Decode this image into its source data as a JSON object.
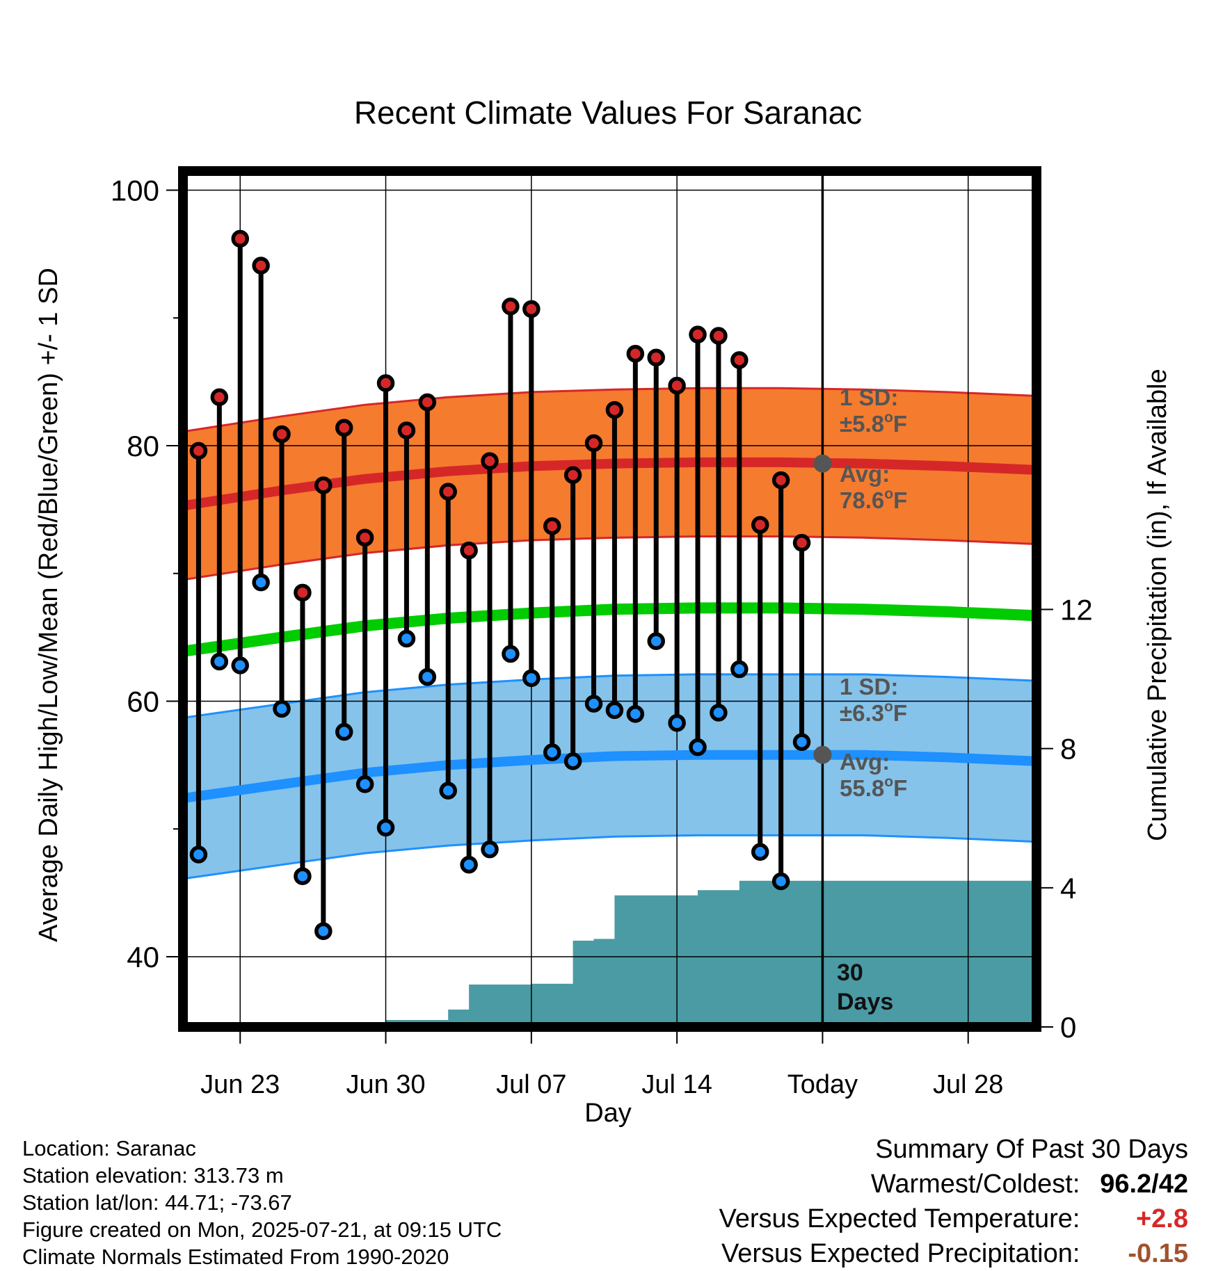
{
  "chart_data": {
    "type": "line",
    "title": "Recent Climate Values For Saranac",
    "xlabel": "Day",
    "ylabel": "Average Daily High/Low/Mean (Red/Blue/Green) +/- 1 SD",
    "y2label": "Cumulative Precipitation (in), If Available",
    "x_ticks": [
      "Jun 23",
      "Jun 30",
      "Jul 07",
      "Jul 14",
      "Today",
      "Jul 28"
    ],
    "y_ticks": [
      40,
      60,
      80,
      100
    ],
    "y2_ticks": [
      0,
      4,
      8,
      12
    ],
    "ylim": [
      34.5,
      101.5
    ],
    "y2lim": [
      0,
      24.6
    ],
    "xlim": [
      -0.75,
      40.25
    ],
    "day_offsets_note_removed": null,
    "grid": true,
    "colors": {
      "high": "#d62728",
      "low": "#1e90ff",
      "mean": "#00cc00",
      "high_band": "#f57b2f",
      "low_band": "#85c3ea",
      "precip": "#4a9ba4",
      "annotation": "#555555"
    },
    "daily_highs": [
      79.6,
      83.8,
      96.2,
      94.1,
      80.9,
      68.5,
      76.9,
      81.4,
      72.8,
      84.9,
      81.2,
      83.4,
      76.4,
      71.8,
      78.8,
      90.9,
      90.7,
      73.7,
      77.7,
      80.2,
      82.8,
      87.2,
      86.9,
      84.7,
      88.7,
      88.6,
      86.7,
      73.8,
      77.3,
      72.4
    ],
    "daily_lows": [
      48.0,
      63.1,
      62.8,
      69.3,
      59.4,
      46.3,
      42.0,
      57.6,
      53.5,
      50.1,
      64.9,
      61.9,
      53.0,
      47.2,
      48.4,
      63.7,
      61.8,
      56.0,
      55.3,
      59.8,
      59.3,
      59.0,
      64.7,
      58.3,
      56.4,
      59.1,
      62.5,
      48.2,
      45.9,
      56.8
    ],
    "normals": {
      "x": [
        -0.75,
        4,
        8,
        12,
        16,
        20,
        24,
        28,
        32,
        36,
        40.25
      ],
      "avg_high": [
        75.3,
        76.5,
        77.4,
        78.0,
        78.4,
        78.6,
        78.7,
        78.7,
        78.6,
        78.4,
        78.1
      ],
      "avg_low": [
        52.4,
        53.5,
        54.4,
        55.0,
        55.4,
        55.7,
        55.8,
        55.8,
        55.8,
        55.6,
        55.3
      ],
      "avg_mean": [
        63.9,
        65.0,
        65.9,
        66.5,
        66.9,
        67.2,
        67.3,
        67.3,
        67.2,
        67.0,
        66.7
      ],
      "high_sd": 5.8,
      "low_sd": 6.3
    },
    "cumulative_precip": {
      "x": [
        0,
        6,
        7,
        9,
        10,
        11,
        12,
        13,
        14,
        15,
        16,
        17,
        18,
        19,
        20,
        21,
        22,
        23,
        24,
        25,
        26,
        27,
        28,
        29,
        30,
        40.25
      ],
      "values": [
        0.0,
        0.03,
        0.03,
        0.2,
        0.2,
        0.2,
        0.5,
        1.22,
        1.22,
        1.22,
        1.24,
        1.24,
        2.48,
        2.53,
        3.78,
        3.78,
        3.78,
        3.78,
        3.93,
        3.93,
        4.2,
        4.2,
        4.2,
        4.2,
        4.2,
        4.2
      ]
    },
    "today_marker": {
      "label_top": "30",
      "label_bottom": "Days"
    },
    "high_annotation": {
      "sd_label": "1 SD:",
      "sd_value": "±5.8",
      "avg_label": "Avg:",
      "avg_value": "78.6",
      "unit": "F",
      "deg": "o"
    },
    "low_annotation": {
      "sd_label": "1 SD:",
      "sd_value": "±6.3",
      "avg_label": "Avg:",
      "avg_value": "55.8",
      "unit": "F",
      "deg": "o"
    }
  },
  "footer": {
    "location": "Location: Saranac",
    "elevation": "Station elevation: 313.73 m",
    "latlon": "Station lat/lon: 44.71; -73.67",
    "created": "Figure created on Mon, 2025-07-21, at 09:15 UTC",
    "normals": "Climate Normals Estimated From 1990-2020"
  },
  "summary": {
    "title": "Summary Of Past 30 Days",
    "warm_label": "Warmest/Coldest:",
    "warm_value": "96.2/42",
    "temp_label": "Versus Expected Temperature:",
    "temp_value": "+2.8",
    "precip_label": "Versus Expected Precipitation:",
    "precip_value": "-0.15"
  }
}
